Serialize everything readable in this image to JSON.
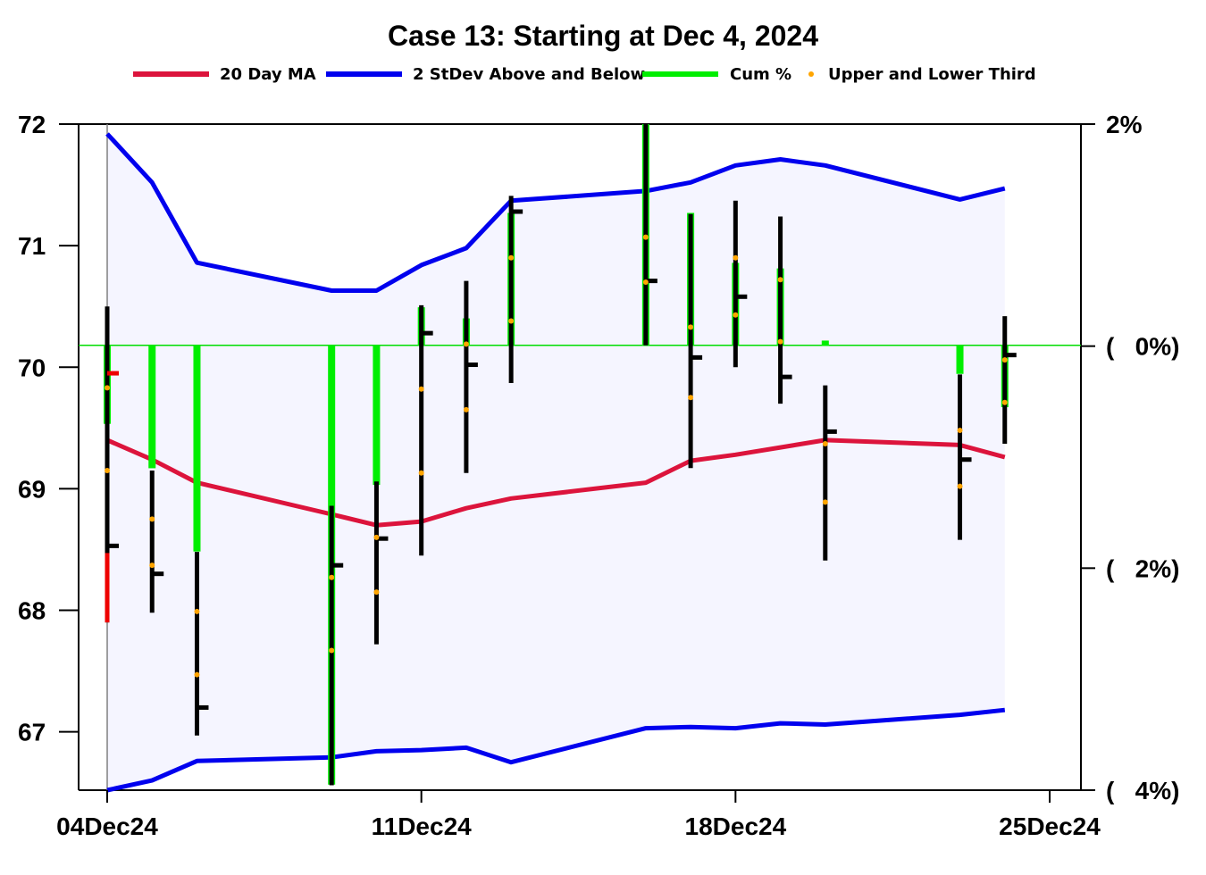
{
  "chart_data": {
    "type": "ohlc",
    "title": "Case 13:  Starting at  Dec 4, 2024",
    "legend": {
      "placement": "top-center",
      "items": [
        {
          "label": "20 Day MA",
          "color": "#dc143c",
          "kind": "line"
        },
        {
          "label": "2 StDev Above and Below",
          "color": "#0000ee",
          "kind": "line"
        },
        {
          "label": "Cum %",
          "color": "#00ee00",
          "kind": "line"
        },
        {
          "label": "Upper and Lower Third",
          "color": "#ffa500",
          "kind": "dot"
        }
      ]
    },
    "y_left": {
      "min": 66.52,
      "max": 72.0,
      "ticks": [
        67,
        68,
        69,
        70,
        71,
        72
      ]
    },
    "y_right": {
      "min_pct": -4,
      "max_pct": 2,
      "ticks": [
        {
          "value": 2,
          "label": "2%"
        },
        {
          "value": 0,
          "label": "(   0%)"
        },
        {
          "value": -2,
          "label": "(   2%)"
        },
        {
          "value": -4,
          "label": "(   4%)"
        }
      ]
    },
    "zero_line_price": 70.18,
    "x_axis": {
      "start": "2024-12-04",
      "end": "2024-12-25",
      "ticks": [
        {
          "date": "2024-12-04",
          "label": "04Dec24"
        },
        {
          "date": "2024-12-11",
          "label": "11Dec24"
        },
        {
          "date": "2024-12-18",
          "label": "18Dec24"
        },
        {
          "date": "2024-12-25",
          "label": "25Dec24"
        }
      ]
    },
    "grid": false,
    "bars": [
      {
        "date": "2024-12-04",
        "open": 69.95,
        "high": 70.5,
        "low": 67.9,
        "close": 68.53,
        "upper_third": 69.83,
        "lower_third": 69.15,
        "cum_pct": -0.7,
        "first": true
      },
      {
        "date": "2024-12-05",
        "open": 68.3,
        "high": 69.15,
        "low": 67.98,
        "close": 68.3,
        "upper_third": 68.75,
        "lower_third": 68.37,
        "cum_pct": -1.1
      },
      {
        "date": "2024-12-06",
        "open": 68.0,
        "high": 68.48,
        "low": 66.97,
        "close": 67.2,
        "upper_third": 67.99,
        "lower_third": 67.47,
        "cum_pct": -1.85
      },
      {
        "date": "2024-12-09",
        "open": 68.38,
        "high": 68.86,
        "low": 66.56,
        "close": 68.37,
        "upper_third": 68.27,
        "lower_third": 67.67,
        "cum_pct": -3.95
      },
      {
        "date": "2024-12-10",
        "open": 68.6,
        "high": 69.06,
        "low": 67.72,
        "close": 68.59,
        "upper_third": 68.6,
        "lower_third": 68.15,
        "cum_pct": -1.25
      },
      {
        "date": "2024-12-11",
        "open": 68.6,
        "high": 70.51,
        "low": 68.45,
        "close": 70.28,
        "upper_third": 69.82,
        "lower_third": 69.13,
        "cum_pct": 0.35
      },
      {
        "date": "2024-12-12",
        "open": 70.18,
        "high": 70.71,
        "low": 69.13,
        "close": 70.02,
        "upper_third": 70.19,
        "lower_third": 69.65,
        "cum_pct": 0.25
      },
      {
        "date": "2024-12-13",
        "open": 71.28,
        "high": 71.41,
        "low": 69.87,
        "close": 71.28,
        "upper_third": 70.9,
        "lower_third": 70.38,
        "cum_pct": 1.2
      },
      {
        "date": "2024-12-16",
        "open": 70.37,
        "high": 72.0,
        "low": 70.18,
        "close": 70.71,
        "upper_third": 71.07,
        "lower_third": 70.7,
        "cum_pct": 2.0
      },
      {
        "date": "2024-12-17",
        "open": 70.2,
        "high": 71.26,
        "low": 69.17,
        "close": 70.08,
        "upper_third": 70.33,
        "lower_third": 69.75,
        "cum_pct": 1.2
      },
      {
        "date": "2024-12-18",
        "open": 70.48,
        "high": 71.37,
        "low": 70.0,
        "close": 70.58,
        "upper_third": 70.9,
        "lower_third": 70.43,
        "cum_pct": 0.75
      },
      {
        "date": "2024-12-19",
        "open": 70.2,
        "high": 71.24,
        "low": 69.7,
        "close": 69.92,
        "upper_third": 70.72,
        "lower_third": 70.21,
        "cum_pct": 0.7
      },
      {
        "date": "2024-12-20",
        "open": 69.47,
        "high": 69.85,
        "low": 68.41,
        "close": 69.47,
        "upper_third": 69.37,
        "lower_third": 68.89,
        "cum_pct": 0.05
      },
      {
        "date": "2024-12-23",
        "open": 69.67,
        "high": 69.94,
        "low": 68.58,
        "close": 69.24,
        "upper_third": 69.48,
        "lower_third": 69.02,
        "cum_pct": -0.25
      },
      {
        "date": "2024-12-24",
        "open": 70.1,
        "high": 70.42,
        "low": 69.37,
        "close": 70.1,
        "upper_third": 70.06,
        "lower_third": 69.71,
        "cum_pct": -0.55
      }
    ],
    "ma20": [
      {
        "date": "2024-12-04",
        "value": 69.4
      },
      {
        "date": "2024-12-05",
        "value": 69.24
      },
      {
        "date": "2024-12-06",
        "value": 69.05
      },
      {
        "date": "2024-12-09",
        "value": 68.79
      },
      {
        "date": "2024-12-10",
        "value": 68.7
      },
      {
        "date": "2024-12-11",
        "value": 68.73
      },
      {
        "date": "2024-12-12",
        "value": 68.84
      },
      {
        "date": "2024-12-13",
        "value": 68.92
      },
      {
        "date": "2024-12-16",
        "value": 69.05
      },
      {
        "date": "2024-12-17",
        "value": 69.23
      },
      {
        "date": "2024-12-18",
        "value": 69.28
      },
      {
        "date": "2024-12-19",
        "value": 69.34
      },
      {
        "date": "2024-12-20",
        "value": 69.4
      },
      {
        "date": "2024-12-23",
        "value": 69.36
      },
      {
        "date": "2024-12-24",
        "value": 69.26
      }
    ],
    "upper_band": [
      {
        "date": "2024-12-04",
        "value": 71.92
      },
      {
        "date": "2024-12-05",
        "value": 71.52
      },
      {
        "date": "2024-12-06",
        "value": 70.86
      },
      {
        "date": "2024-12-09",
        "value": 70.63
      },
      {
        "date": "2024-12-10",
        "value": 70.63
      },
      {
        "date": "2024-12-11",
        "value": 70.84
      },
      {
        "date": "2024-12-12",
        "value": 70.98
      },
      {
        "date": "2024-12-13",
        "value": 71.37
      },
      {
        "date": "2024-12-16",
        "value": 71.45
      },
      {
        "date": "2024-12-17",
        "value": 71.52
      },
      {
        "date": "2024-12-18",
        "value": 71.66
      },
      {
        "date": "2024-12-19",
        "value": 71.71
      },
      {
        "date": "2024-12-20",
        "value": 71.66
      },
      {
        "date": "2024-12-23",
        "value": 71.38
      },
      {
        "date": "2024-12-24",
        "value": 71.47
      }
    ],
    "lower_band": [
      {
        "date": "2024-12-04",
        "value": 66.52
      },
      {
        "date": "2024-12-05",
        "value": 66.6
      },
      {
        "date": "2024-12-06",
        "value": 66.76
      },
      {
        "date": "2024-12-09",
        "value": 66.79
      },
      {
        "date": "2024-12-10",
        "value": 66.84
      },
      {
        "date": "2024-12-11",
        "value": 66.85
      },
      {
        "date": "2024-12-12",
        "value": 66.87
      },
      {
        "date": "2024-12-13",
        "value": 66.75
      },
      {
        "date": "2024-12-16",
        "value": 67.03
      },
      {
        "date": "2024-12-17",
        "value": 67.04
      },
      {
        "date": "2024-12-18",
        "value": 67.03
      },
      {
        "date": "2024-12-19",
        "value": 67.07
      },
      {
        "date": "2024-12-20",
        "value": 67.06
      },
      {
        "date": "2024-12-23",
        "value": 67.14
      },
      {
        "date": "2024-12-24",
        "value": 67.18
      }
    ],
    "colors": {
      "ma": "#dc143c",
      "band": "#0000ee",
      "band_fill": "#f5f5ff",
      "cum": "#00ee00",
      "bar": "#000000",
      "bar_first": "#ee0000",
      "third_dot": "#ffa500",
      "zero_line": "#00dd00",
      "frame": "#000000"
    }
  }
}
